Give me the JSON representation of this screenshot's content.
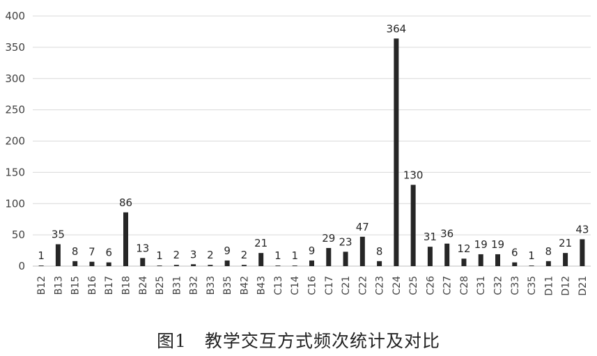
{
  "caption": "图1　教学交互方式频次统计及对比",
  "colors": {
    "bar": "#262626",
    "grid": "#d9d9d9",
    "axis": "#bfbfbf"
  },
  "chart_data": {
    "type": "bar",
    "title": "",
    "xlabel": "",
    "ylabel": "",
    "ylim": [
      0,
      400
    ],
    "yticks": [
      0,
      50,
      100,
      150,
      200,
      250,
      300,
      350,
      400
    ],
    "grid": true,
    "legend": "none",
    "categories": [
      "B12",
      "B13",
      "B15",
      "B16",
      "B17",
      "B18",
      "B24",
      "B25",
      "B31",
      "B32",
      "B33",
      "B35",
      "B42",
      "B43",
      "C13",
      "C14",
      "C16",
      "C17",
      "C21",
      "C22",
      "C23",
      "C24",
      "C25",
      "C26",
      "C27",
      "C28",
      "C31",
      "C32",
      "C33",
      "C35",
      "D11",
      "D12",
      "D21"
    ],
    "values": [
      1,
      35,
      8,
      7,
      6,
      86,
      13,
      1,
      2,
      3,
      2,
      9,
      2,
      21,
      1,
      1,
      9,
      29,
      23,
      47,
      8,
      364,
      130,
      31,
      36,
      12,
      19,
      19,
      6,
      1,
      8,
      21,
      43
    ]
  }
}
